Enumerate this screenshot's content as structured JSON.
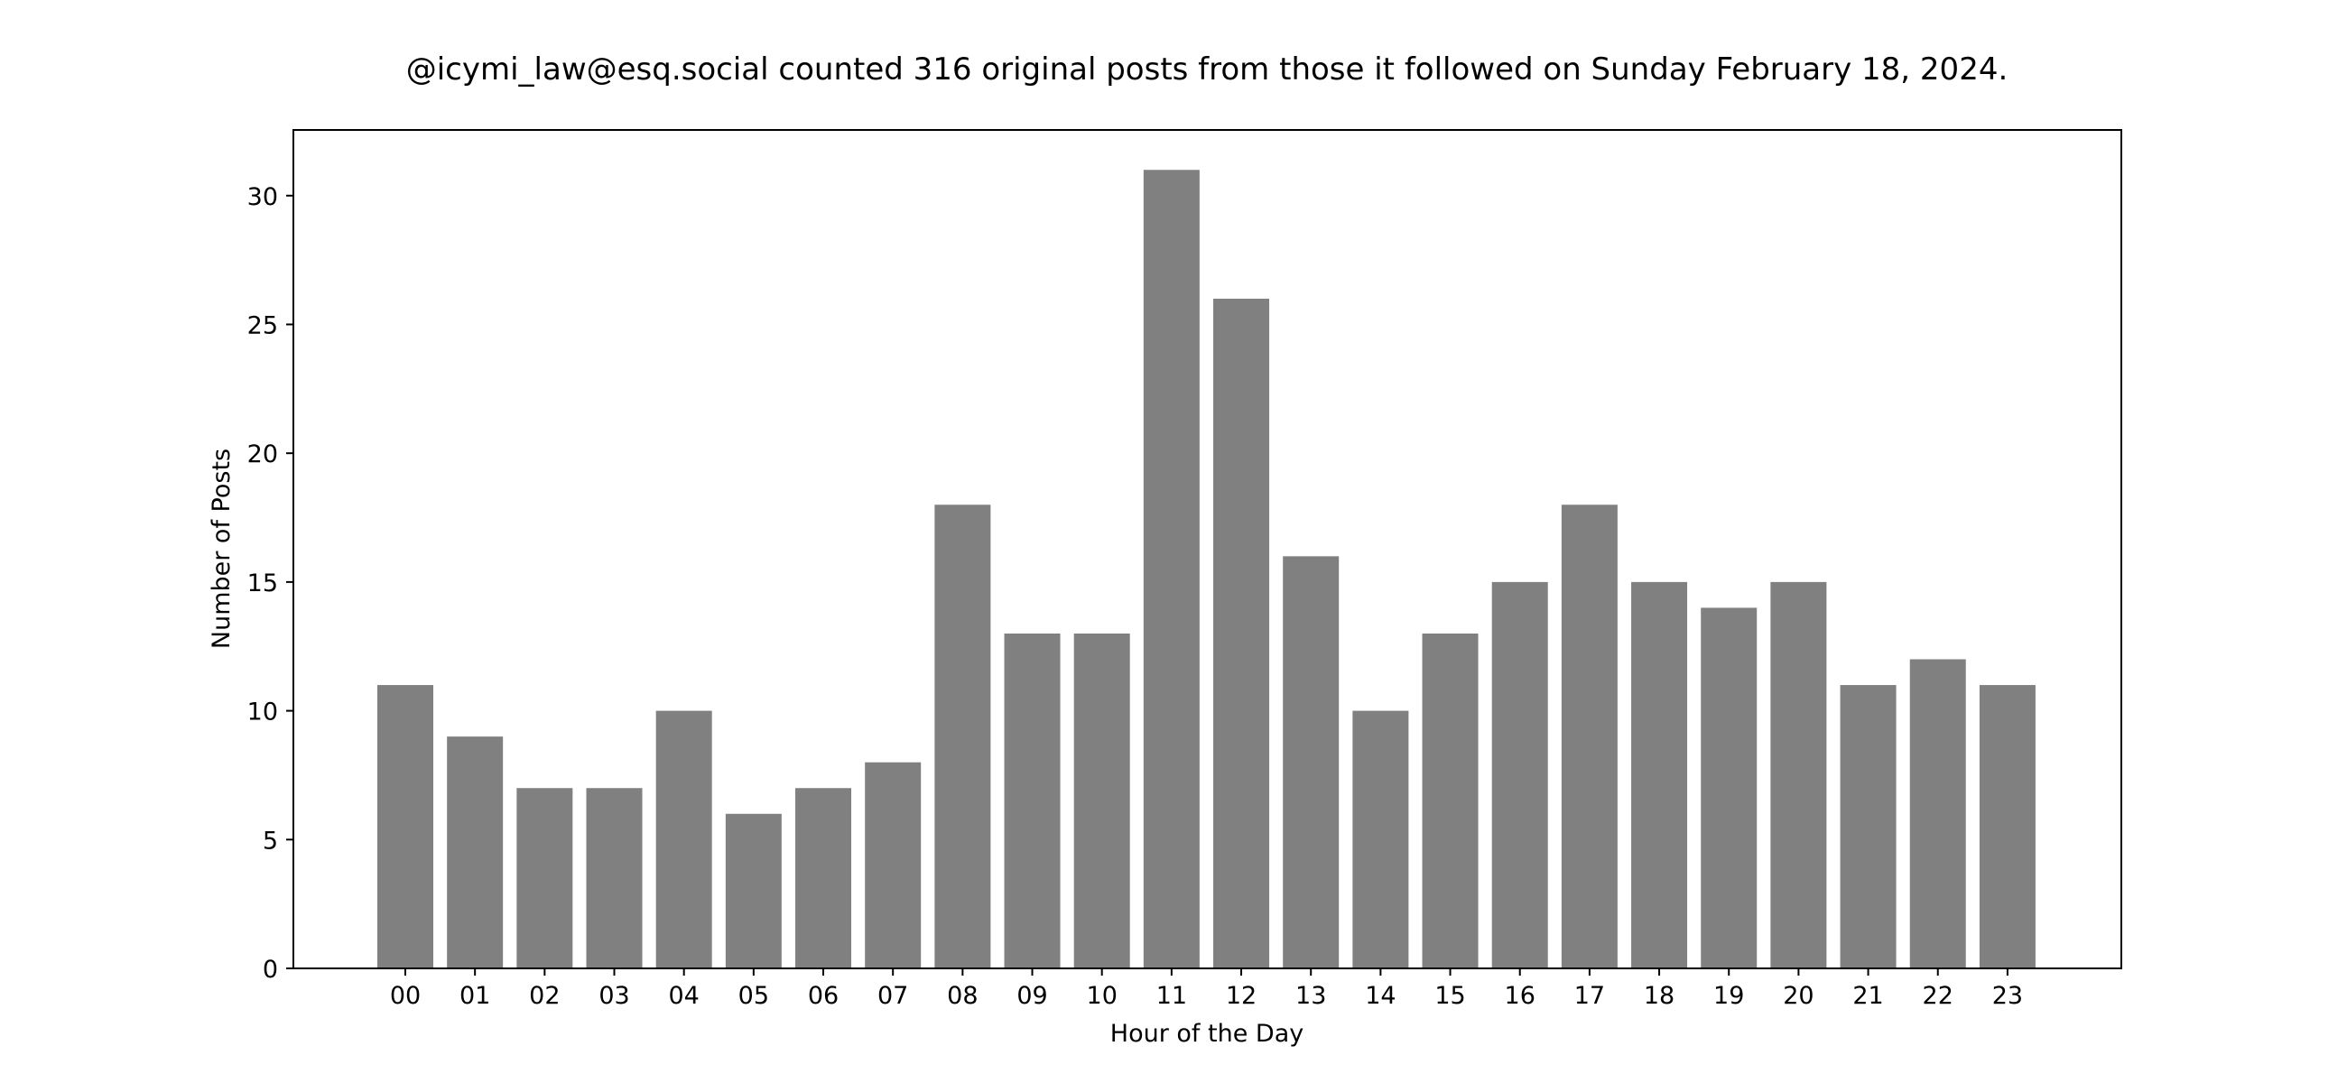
{
  "chart_data": {
    "type": "bar",
    "title": "@icymi_law@esq.social counted 316 original posts from those it followed on Sunday February 18, 2024.",
    "xlabel": "Hour of the Day",
    "ylabel": "Number of Posts",
    "categories": [
      "00",
      "01",
      "02",
      "03",
      "04",
      "05",
      "06",
      "07",
      "08",
      "09",
      "10",
      "11",
      "12",
      "13",
      "14",
      "15",
      "16",
      "17",
      "18",
      "19",
      "20",
      "21",
      "22",
      "23"
    ],
    "values": [
      11,
      9,
      7,
      7,
      10,
      6,
      7,
      8,
      18,
      13,
      13,
      31,
      26,
      16,
      10,
      13,
      15,
      18,
      15,
      14,
      15,
      11,
      12,
      11
    ],
    "yticks": [
      "0",
      "5",
      "10",
      "15",
      "20",
      "25",
      "30"
    ],
    "ylim": [
      0,
      32.55
    ],
    "grid": false,
    "bar_color": "#808080"
  }
}
